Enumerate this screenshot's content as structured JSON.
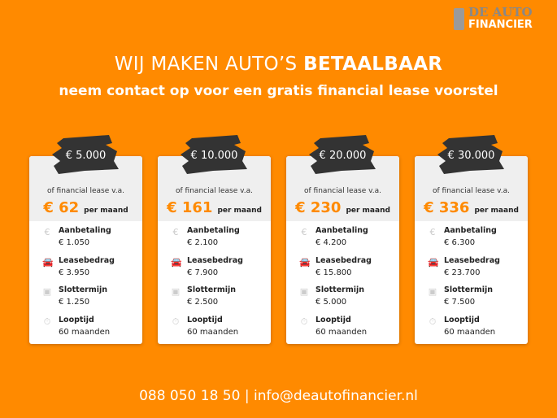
{
  "logo": {
    "line1": "DE AUTO",
    "line2": "FINANCIER"
  },
  "header": {
    "title_regular": "WIJ MAKEN AUTO’S ",
    "title_bold": "BETAALBAAR",
    "subtitle": "neem contact op voor een gratis financial lease voorstel"
  },
  "labels": {
    "lease_from": "of financial lease v.a.",
    "per_month": "per maand",
    "downpayment": "Aanbetaling",
    "lease_amount": "Leasebedrag",
    "final_term": "Slottermijn",
    "duration": "Looptijd"
  },
  "cards": [
    {
      "price": "€ 5.000",
      "monthly": "€ 62",
      "downpayment": "€ 1.050",
      "lease_amount": "€ 3.950",
      "final_term": "€ 1.250",
      "duration": "60 maanden"
    },
    {
      "price": "€ 10.000",
      "monthly": "€ 161",
      "downpayment": "€ 2.100",
      "lease_amount": "€ 7.900",
      "final_term": "€ 2.500",
      "duration": "60 maanden"
    },
    {
      "price": "€ 20.000",
      "monthly": "€ 230",
      "downpayment": "€ 4.200",
      "lease_amount": "€ 15.800",
      "final_term": "€ 5.000",
      "duration": "60 maanden"
    },
    {
      "price": "€ 30.000",
      "monthly": "€ 336",
      "downpayment": "€ 6.300",
      "lease_amount": "€ 23.700",
      "final_term": "€ 7.500",
      "duration": "60 maanden"
    }
  ],
  "footer": {
    "phone": "088 050 18 50",
    "separator": " | ",
    "email": "info@deautofinancier.nl"
  },
  "colors": {
    "background": "#ff8a00",
    "accent": "#ff8a00",
    "brush": "#333333"
  }
}
